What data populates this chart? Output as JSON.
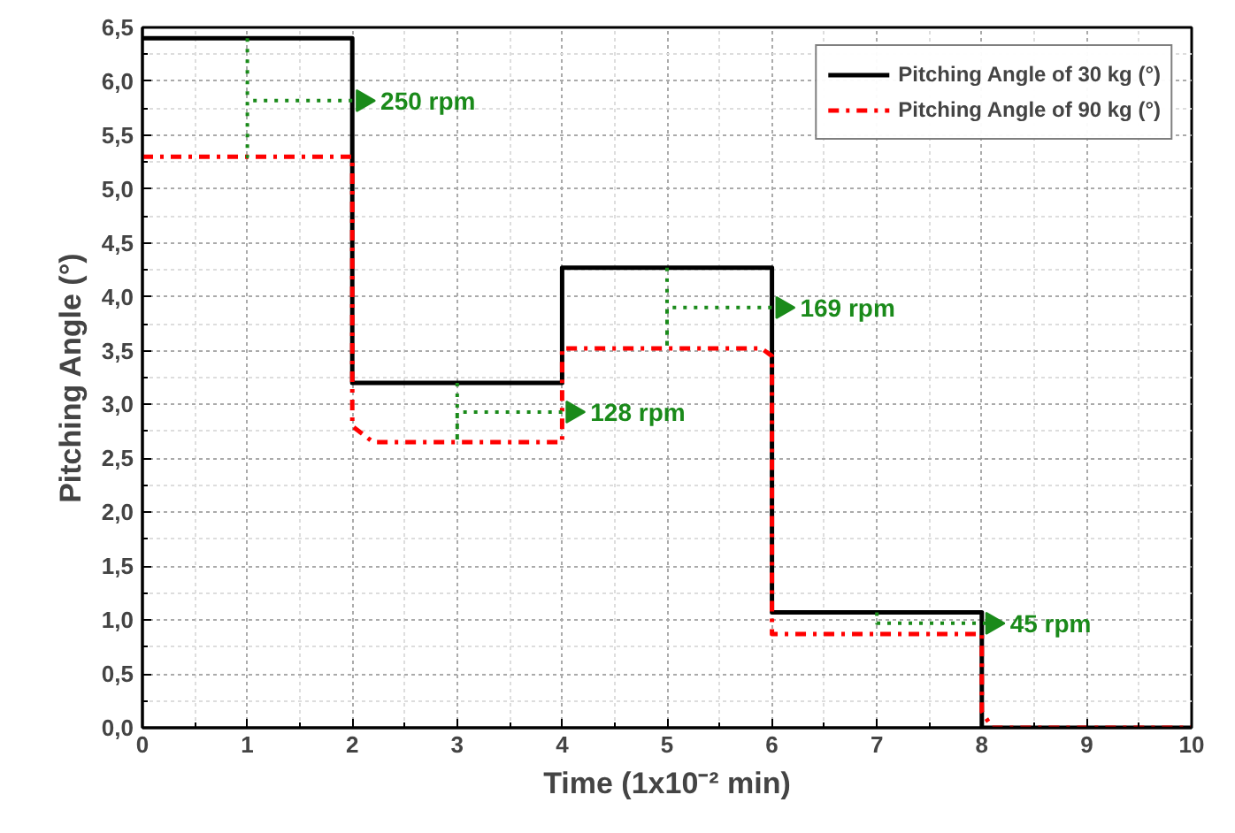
{
  "chart_data": {
    "type": "line",
    "xlabel": "Time (1x10⁻² min)",
    "ylabel": "Pitching Angle (°)",
    "xlim": [
      0,
      10
    ],
    "ylim": [
      0,
      6.5
    ],
    "xticks": [
      0,
      1,
      2,
      3,
      4,
      5,
      6,
      7,
      8,
      9,
      10
    ],
    "yticks": [
      {
        "value": 0,
        "label": "0,0"
      },
      {
        "value": 0.5,
        "label": "0,5"
      },
      {
        "value": 1,
        "label": "1,0"
      },
      {
        "value": 1.5,
        "label": "1,5"
      },
      {
        "value": 2,
        "label": "2,0"
      },
      {
        "value": 2.5,
        "label": "2,5"
      },
      {
        "value": 3,
        "label": "3,0"
      },
      {
        "value": 3.5,
        "label": "3,5"
      },
      {
        "value": 4,
        "label": "4,0"
      },
      {
        "value": 4.5,
        "label": "4,5"
      },
      {
        "value": 5,
        "label": "5,0"
      },
      {
        "value": 5.5,
        "label": "5,5"
      },
      {
        "value": 6,
        "label": "6,0"
      },
      {
        "value": 6.5,
        "label": "6,5"
      }
    ],
    "series": [
      {
        "name": "Pitching Angle of 30 kg (°)",
        "color": "#000000",
        "line_style": "solid",
        "x": [
          0,
          2,
          2,
          4,
          4,
          6,
          6,
          8,
          8,
          10
        ],
        "values": [
          6.4,
          6.4,
          3.2,
          3.2,
          4.27,
          4.27,
          1.07,
          1.07,
          0,
          0
        ]
      },
      {
        "name": "Pitching Angle of 90 kg (°)",
        "color": "#ff0000",
        "line_style": "dashdot",
        "x": [
          0,
          2,
          2,
          2.2,
          4,
          4,
          5.9,
          6,
          6,
          8,
          8,
          8.1,
          10
        ],
        "values": [
          5.3,
          5.3,
          2.8,
          2.65,
          2.65,
          3.52,
          3.52,
          3.45,
          0.87,
          0.87,
          0.15,
          0,
          0
        ]
      },
      {
        "color": "#1a8a1a",
        "line_style": "dotted",
        "x": [
          1,
          1,
          1,
          2.1
        ],
        "values": [
          6.4,
          5.3,
          5.82,
          5.82
        ]
      },
      {
        "color": "#1a8a1a",
        "line_style": "dotted",
        "x": [
          3,
          3,
          3,
          4.1
        ],
        "values": [
          3.2,
          2.65,
          2.93,
          2.93
        ]
      },
      {
        "color": "#1a8a1a",
        "line_style": "dotted",
        "x": [
          5,
          5,
          5,
          6.1
        ],
        "values": [
          4.27,
          3.52,
          3.9,
          3.9
        ]
      },
      {
        "color": "#1a8a1a",
        "line_style": "dotted",
        "x": [
          7,
          7,
          8.1
        ],
        "values": [
          1.07,
          0.97,
          0.97
        ]
      }
    ],
    "annotations": [
      "250 rpm",
      "128 rpm",
      "169 rpm",
      "45 rpm"
    ],
    "grid": true,
    "legend": "top right",
    "marker": "none"
  }
}
